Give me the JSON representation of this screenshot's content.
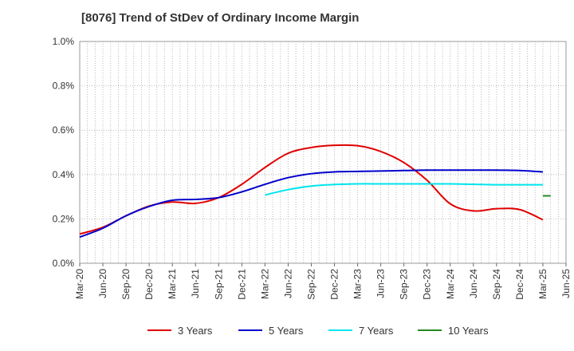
{
  "chart_data": {
    "type": "line",
    "title": "[8076]  Trend of StDev of Ordinary Income Margin",
    "xlabel": "",
    "ylabel": "",
    "y_unit": "%",
    "ylim": [
      0.0,
      1.0
    ],
    "yticks": [
      "0.0%",
      "0.2%",
      "0.4%",
      "0.6%",
      "0.8%",
      "1.0%"
    ],
    "ytick_values": [
      0.0,
      0.2,
      0.4,
      0.6,
      0.8,
      1.0
    ],
    "xticks": [
      "Mar-20",
      "Jun-20",
      "Sep-20",
      "Dec-20",
      "Mar-21",
      "Jun-21",
      "Sep-21",
      "Dec-21",
      "Mar-22",
      "Jun-22",
      "Sep-22",
      "Dec-22",
      "Mar-23",
      "Jun-23",
      "Sep-23",
      "Dec-23",
      "Mar-24",
      "Jun-24",
      "Sep-24",
      "Dec-24",
      "Mar-25",
      "Jun-25"
    ],
    "grid": true,
    "legend_position": "bottom",
    "series": [
      {
        "name": "3 Years",
        "color": "#e00000",
        "points": [
          [
            "Mar-20",
            0.132
          ],
          [
            "Jun-20",
            0.162
          ],
          [
            "Sep-20",
            0.214
          ],
          [
            "Dec-20",
            0.258
          ],
          [
            "Mar-21",
            0.276
          ],
          [
            "Jun-21",
            0.27
          ],
          [
            "Sep-21",
            0.296
          ],
          [
            "Dec-21",
            0.356
          ],
          [
            "Mar-22",
            0.432
          ],
          [
            "Jun-22",
            0.496
          ],
          [
            "Sep-22",
            0.522
          ],
          [
            "Dec-22",
            0.532
          ],
          [
            "Mar-23",
            0.53
          ],
          [
            "Jun-23",
            0.504
          ],
          [
            "Sep-23",
            0.454
          ],
          [
            "Dec-23",
            0.374
          ],
          [
            "Mar-24",
            0.268
          ],
          [
            "Jun-24",
            0.236
          ],
          [
            "Sep-24",
            0.246
          ],
          [
            "Dec-24",
            0.242
          ],
          [
            "Mar-25",
            0.196
          ]
        ]
      },
      {
        "name": "5 Years",
        "color": "#0000cc",
        "points": [
          [
            "Mar-20",
            0.118
          ],
          [
            "Jun-20",
            0.158
          ],
          [
            "Sep-20",
            0.214
          ],
          [
            "Dec-20",
            0.256
          ],
          [
            "Mar-21",
            0.284
          ],
          [
            "Jun-21",
            0.288
          ],
          [
            "Sep-21",
            0.296
          ],
          [
            "Dec-21",
            0.322
          ],
          [
            "Mar-22",
            0.356
          ],
          [
            "Jun-22",
            0.386
          ],
          [
            "Sep-22",
            0.404
          ],
          [
            "Dec-22",
            0.412
          ],
          [
            "Mar-23",
            0.414
          ],
          [
            "Jun-23",
            0.416
          ],
          [
            "Sep-23",
            0.418
          ],
          [
            "Dec-23",
            0.42
          ],
          [
            "Mar-24",
            0.42
          ],
          [
            "Jun-24",
            0.42
          ],
          [
            "Sep-24",
            0.42
          ],
          [
            "Dec-24",
            0.418
          ],
          [
            "Mar-25",
            0.412
          ]
        ]
      },
      {
        "name": "7 Years",
        "color": "#00e5ee",
        "points": [
          [
            "Mar-22",
            0.308
          ],
          [
            "Jun-22",
            0.332
          ],
          [
            "Sep-22",
            0.348
          ],
          [
            "Dec-22",
            0.355
          ],
          [
            "Mar-23",
            0.358
          ],
          [
            "Jun-23",
            0.358
          ],
          [
            "Sep-23",
            0.358
          ],
          [
            "Dec-23",
            0.358
          ],
          [
            "Mar-24",
            0.358
          ],
          [
            "Jun-24",
            0.356
          ],
          [
            "Sep-24",
            0.354
          ],
          [
            "Dec-24",
            0.354
          ],
          [
            "Mar-25",
            0.354
          ]
        ]
      },
      {
        "name": "10 Years",
        "color": "#228b22",
        "points": [
          [
            "Mar-25",
            0.304
          ],
          [
            "Apr-25",
            0.304
          ]
        ]
      }
    ]
  }
}
